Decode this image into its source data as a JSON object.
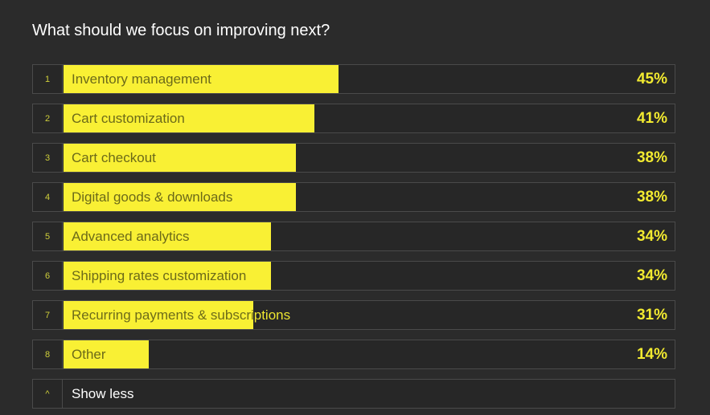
{
  "chart_data": {
    "type": "bar",
    "title": "What should we focus on improving next?",
    "categories": [
      "Inventory management",
      "Cart customization",
      "Cart checkout",
      "Digital goods & downloads",
      "Advanced analytics",
      "Shipping rates customization",
      "Recurring payments & subscriptions",
      "Other"
    ],
    "ranks": [
      "1",
      "2",
      "3",
      "4",
      "5",
      "6",
      "7",
      "8"
    ],
    "values": [
      45,
      41,
      38,
      38,
      34,
      34,
      31,
      14
    ],
    "value_labels": [
      "45%",
      "41%",
      "38%",
      "38%",
      "34%",
      "34%",
      "31%",
      "14%"
    ],
    "xlim": [
      0,
      100
    ],
    "orientation": "horizontal",
    "bar_color": "#f9f034"
  },
  "footer": {
    "toggle_icon": "^",
    "toggle_label": "Show less"
  }
}
